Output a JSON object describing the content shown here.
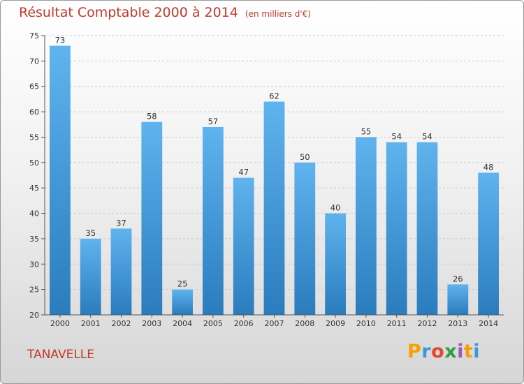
{
  "header": {
    "title": "Résultat Comptable 2000 à 2014",
    "subtitle": "(en milliers d'€)"
  },
  "footer": {
    "town": "TANAVELLE",
    "logo_letters": [
      "P",
      "r",
      "o",
      "x",
      "i",
      "t",
      "i"
    ],
    "logo_colors": [
      "#f4a100",
      "#3a9ad9",
      "#e8452c",
      "#2e9e44",
      "#9b59b6",
      "#f4a100",
      "#3a9ad9"
    ]
  },
  "colors": {
    "title": "#c0392b",
    "bar_top": "#5fb3ee",
    "bar_bottom": "#2a7cbd",
    "axis": "#555555",
    "grid": "#cccccc"
  },
  "chart_data": {
    "type": "bar",
    "categories": [
      "2000",
      "2001",
      "2002",
      "2003",
      "2004",
      "2005",
      "2006",
      "2007",
      "2008",
      "2009",
      "2010",
      "2011",
      "2012",
      "2013",
      "2014"
    ],
    "values": [
      73,
      35,
      37,
      58,
      25,
      57,
      47,
      62,
      50,
      40,
      55,
      54,
      54,
      26,
      48
    ],
    "title": "Résultat Comptable 2000 à 2014",
    "ylim": [
      20,
      75
    ],
    "yticks": [
      20,
      25,
      30,
      35,
      40,
      45,
      50,
      55,
      60,
      65,
      70,
      75
    ],
    "grid": true,
    "data_labels": true
  }
}
